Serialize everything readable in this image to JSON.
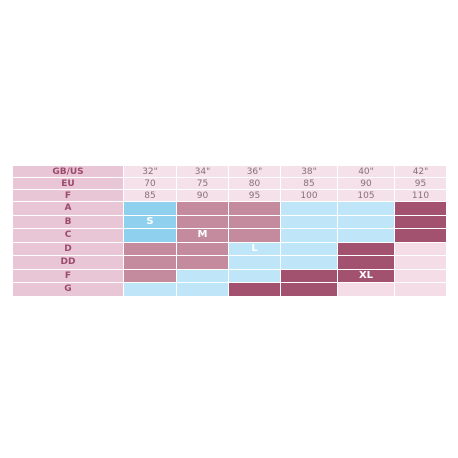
{
  "table": {
    "header_rows": [
      {
        "label": "GB/US",
        "cells": [
          "32\"",
          "34\"",
          "36\"",
          "38\"",
          "40\"",
          "42\""
        ]
      },
      {
        "label": "EU",
        "cells": [
          "70",
          "75",
          "80",
          "85",
          "90",
          "95"
        ]
      },
      {
        "label": "F",
        "cells": [
          "85",
          "90",
          "95",
          "100",
          "105",
          "110"
        ]
      }
    ],
    "rows": [
      {
        "label": "A",
        "cells": [
          {
            "color": "#8fd0ef"
          },
          {
            "color": "#c48b9f"
          },
          {
            "color": "#c48b9f"
          },
          {
            "color": "#bfe6f8"
          },
          {
            "color": "#bfe6f8"
          },
          {
            "color": "#a2526f"
          }
        ]
      },
      {
        "label": "B",
        "cells": [
          {
            "color": "#8fd0ef",
            "label": "S"
          },
          {
            "color": "#c48b9f"
          },
          {
            "color": "#c48b9f"
          },
          {
            "color": "#bfe6f8"
          },
          {
            "color": "#bfe6f8"
          },
          {
            "color": "#a2526f"
          }
        ]
      },
      {
        "label": "C",
        "cells": [
          {
            "color": "#8fd0ef"
          },
          {
            "color": "#c48b9f",
            "label": "M"
          },
          {
            "color": "#c48b9f"
          },
          {
            "color": "#bfe6f8"
          },
          {
            "color": "#bfe6f8"
          },
          {
            "color": "#a2526f"
          }
        ]
      },
      {
        "label": "D",
        "cells": [
          {
            "color": "#c48b9f"
          },
          {
            "color": "#c48b9f"
          },
          {
            "color": "#bfe6f8",
            "label": "L"
          },
          {
            "color": "#bfe6f8"
          },
          {
            "color": "#a2526f"
          },
          {
            "color": "#f5dde8"
          }
        ]
      },
      {
        "label": "DD",
        "cells": [
          {
            "color": "#c48b9f"
          },
          {
            "color": "#c48b9f"
          },
          {
            "color": "#bfe6f8"
          },
          {
            "color": "#bfe6f8"
          },
          {
            "color": "#a2526f"
          },
          {
            "color": "#f5dde8"
          }
        ]
      },
      {
        "label": "F",
        "cells": [
          {
            "color": "#c48b9f"
          },
          {
            "color": "#bfe6f8"
          },
          {
            "color": "#bfe6f8"
          },
          {
            "color": "#a2526f"
          },
          {
            "color": "#a2526f",
            "label": "XL"
          },
          {
            "color": "#f5dde8"
          }
        ]
      },
      {
        "label": "G",
        "cells": [
          {
            "color": "#bfe6f8"
          },
          {
            "color": "#bfe6f8"
          },
          {
            "color": "#a2526f"
          },
          {
            "color": "#a2526f"
          },
          {
            "color": "#f5dde8"
          },
          {
            "color": "#f5dde8"
          }
        ]
      }
    ]
  }
}
